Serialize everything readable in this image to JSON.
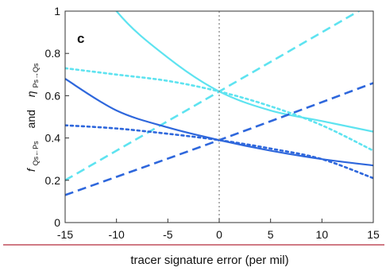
{
  "chart_data": {
    "type": "line",
    "panel_label": "c",
    "xlabel": "tracer signature error (per mil)",
    "ylabel": {
      "f_main": "f",
      "f_sub": "Qs←Ps",
      "and_text": "and",
      "eta_main": "η",
      "eta_sub": "Ps→Qs"
    },
    "xlim": [
      -15,
      15
    ],
    "ylim": [
      0,
      1
    ],
    "xticks": [
      -15,
      -10,
      -5,
      0,
      5,
      10,
      15
    ],
    "yticks": [
      0,
      0.2,
      0.4,
      0.6,
      0.8,
      1
    ],
    "ytick_labels": [
      "0",
      "0.2",
      "0.4",
      "0.6",
      "0.8",
      "1"
    ],
    "reference_line_x": 0,
    "bottom_rule_color": "#b52b3a",
    "colors": {
      "light": "#5ee3f0",
      "dark": "#2e67dc",
      "reference": "#888888",
      "axis": "#333333"
    },
    "series": [
      {
        "color": "light",
        "style": "solid",
        "x": [
          -15,
          -10,
          -5,
          0,
          5,
          10,
          15
        ],
        "y": [
          1.36,
          1.0,
          0.78,
          0.62,
          0.53,
          0.48,
          0.43
        ]
      },
      {
        "color": "light",
        "style": "dotted",
        "x": [
          -15,
          -10,
          -5,
          0,
          5,
          10,
          15
        ],
        "y": [
          0.73,
          0.7,
          0.67,
          0.62,
          0.55,
          0.46,
          0.34
        ]
      },
      {
        "color": "light",
        "style": "dashed",
        "x": [
          -15,
          0,
          15
        ],
        "y": [
          0.2,
          0.62,
          1.04
        ]
      },
      {
        "color": "dark",
        "style": "solid",
        "x": [
          -15,
          -10,
          -5,
          0,
          5,
          10,
          15
        ],
        "y": [
          0.68,
          0.53,
          0.45,
          0.39,
          0.34,
          0.3,
          0.27
        ]
      },
      {
        "color": "dark",
        "style": "dotted",
        "x": [
          -15,
          -10,
          -5,
          0,
          5,
          10,
          15
        ],
        "y": [
          0.46,
          0.445,
          0.42,
          0.39,
          0.35,
          0.3,
          0.21
        ]
      },
      {
        "color": "dark",
        "style": "dashed",
        "x": [
          -15,
          0,
          15
        ],
        "y": [
          0.13,
          0.39,
          0.66
        ]
      }
    ]
  }
}
